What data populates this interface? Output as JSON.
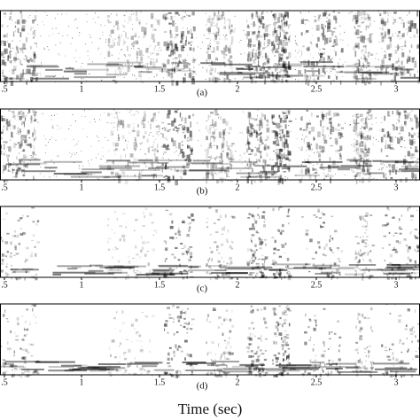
{
  "panels": [
    {
      "label": "(a)",
      "ticks": [
        ".5",
        "1",
        "1.5",
        "2",
        "2.5",
        "3"
      ]
    },
    {
      "label": "(b)",
      "ticks": [
        ".5",
        "1",
        "1.5",
        "2",
        "2.5",
        "3"
      ]
    },
    {
      "label": "(c)",
      "ticks": [
        ".5",
        "1",
        "1.5",
        "2",
        "2.5",
        "3"
      ]
    },
    {
      "label": "(d)",
      "ticks": [
        ".5",
        "1",
        "1.5",
        "2",
        "2.5",
        "3"
      ]
    }
  ],
  "xlabel": "Time (sec)"
}
